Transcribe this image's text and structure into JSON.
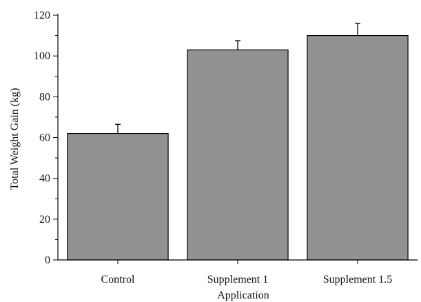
{
  "chart_data": {
    "type": "bar",
    "categories": [
      "Control",
      "Supplement 1",
      "Supplement 1.5"
    ],
    "values": [
      62,
      103,
      110
    ],
    "error": [
      4.5,
      4.5,
      6
    ],
    "xlabel": "Application",
    "ylabel": "Total Weight Gain (kg)",
    "ylim": [
      0,
      120
    ],
    "yticks": [
      0,
      20,
      40,
      60,
      80,
      100,
      120
    ],
    "bar_color": "#929292",
    "grid": false
  }
}
